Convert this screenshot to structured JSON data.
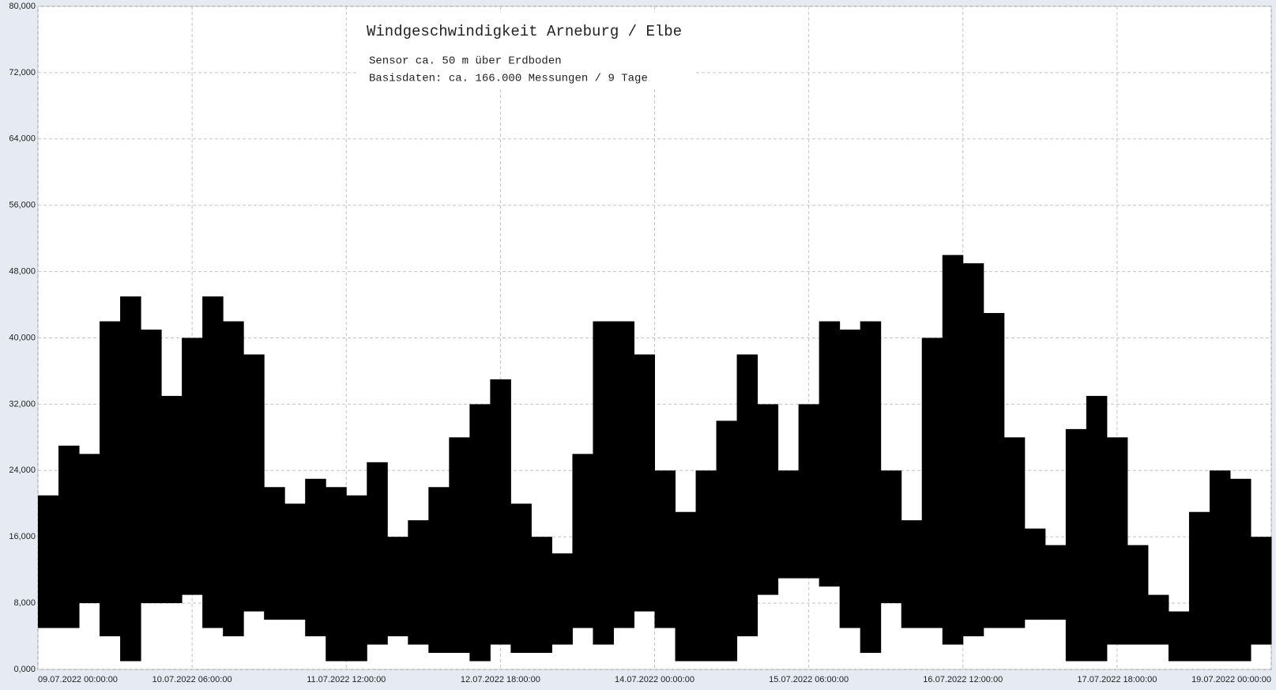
{
  "chart_data": {
    "type": "range",
    "title": "Windgeschwindigkeit  Arneburg / Elbe",
    "annotations": [
      "Sensor ca. 50 m über Erdboden",
      "Basisdaten:  ca. 166.000 Messungen / 9 Tage"
    ],
    "color": "#000000",
    "x": [
      "2022-07-09T00:00",
      "2022-07-09T04:00",
      "2022-07-09T08:00",
      "2022-07-09T12:00",
      "2022-07-09T16:00",
      "2022-07-09T20:00",
      "2022-07-10T00:00",
      "2022-07-10T04:00",
      "2022-07-10T08:00",
      "2022-07-10T12:00",
      "2022-07-10T16:00",
      "2022-07-10T20:00",
      "2022-07-11T00:00",
      "2022-07-11T04:00",
      "2022-07-11T08:00",
      "2022-07-11T12:00",
      "2022-07-11T16:00",
      "2022-07-11T20:00",
      "2022-07-12T00:00",
      "2022-07-12T04:00",
      "2022-07-12T08:00",
      "2022-07-12T12:00",
      "2022-07-12T16:00",
      "2022-07-12T20:00",
      "2022-07-13T00:00",
      "2022-07-13T04:00",
      "2022-07-13T08:00",
      "2022-07-13T12:00",
      "2022-07-13T16:00",
      "2022-07-13T20:00",
      "2022-07-14T00:00",
      "2022-07-14T04:00",
      "2022-07-14T08:00",
      "2022-07-14T12:00",
      "2022-07-14T16:00",
      "2022-07-14T20:00",
      "2022-07-15T00:00",
      "2022-07-15T04:00",
      "2022-07-15T08:00",
      "2022-07-15T12:00",
      "2022-07-15T16:00",
      "2022-07-15T20:00",
      "2022-07-16T00:00",
      "2022-07-16T04:00",
      "2022-07-16T08:00",
      "2022-07-16T12:00",
      "2022-07-16T16:00",
      "2022-07-16T20:00",
      "2022-07-17T00:00",
      "2022-07-17T04:00",
      "2022-07-17T08:00",
      "2022-07-17T12:00",
      "2022-07-17T16:00",
      "2022-07-17T20:00",
      "2022-07-18T00:00",
      "2022-07-18T04:00",
      "2022-07-18T08:00",
      "2022-07-18T12:00",
      "2022-07-18T16:00",
      "2022-07-18T20:00"
    ],
    "lows": [
      5,
      5,
      8,
      4,
      1,
      8,
      8,
      9,
      5,
      4,
      7,
      6,
      6,
      4,
      1,
      1,
      3,
      4,
      3,
      2,
      2,
      1,
      3,
      2,
      2,
      3,
      5,
      3,
      5,
      7,
      5,
      1,
      1,
      1,
      4,
      9,
      11,
      11,
      10,
      5,
      2,
      8,
      5,
      5,
      3,
      4,
      5,
      5,
      6,
      6,
      1,
      1,
      3,
      3,
      3,
      1,
      1,
      1,
      1,
      3
    ],
    "highs": [
      21,
      27,
      26,
      42,
      45,
      41,
      33,
      40,
      45,
      42,
      38,
      22,
      20,
      23,
      22,
      21,
      25,
      16,
      18,
      22,
      28,
      32,
      35,
      20,
      16,
      14,
      26,
      42,
      42,
      38,
      24,
      19,
      24,
      30,
      38,
      32,
      24,
      32,
      42,
      41,
      42,
      24,
      18,
      40,
      50,
      49,
      43,
      28,
      17,
      15,
      29,
      33,
      28,
      15,
      9,
      7,
      19,
      24,
      23,
      16
    ],
    "xlim": [
      "2022-07-09T00:00",
      "2022-07-19T00:00"
    ],
    "xticks": [
      {
        "value": "2022-07-09T00:00",
        "label": "09.07.2022  00:00:00"
      },
      {
        "value": "2022-07-10T06:00",
        "label": "10.07.2022  06:00:00"
      },
      {
        "value": "2022-07-11T12:00",
        "label": "11.07.2022  12:00:00"
      },
      {
        "value": "2022-07-12T18:00",
        "label": "12.07.2022  18:00:00"
      },
      {
        "value": "2022-07-14T00:00",
        "label": "14.07.2022  00:00:00"
      },
      {
        "value": "2022-07-15T06:00",
        "label": "15.07.2022  06:00:00"
      },
      {
        "value": "2022-07-16T12:00",
        "label": "16.07.2022  12:00:00"
      },
      {
        "value": "2022-07-17T18:00",
        "label": "17.07.2022  18:00:00"
      },
      {
        "value": "2022-07-19T00:00",
        "label": "19.07.2022  00:00:00"
      }
    ],
    "ylim": [
      0,
      80
    ],
    "yticks": [
      {
        "value": 0,
        "label": "0,000"
      },
      {
        "value": 8,
        "label": "8,000"
      },
      {
        "value": 16,
        "label": "16,000"
      },
      {
        "value": 24,
        "label": "24,000"
      },
      {
        "value": 32,
        "label": "32,000"
      },
      {
        "value": 40,
        "label": "40,000"
      },
      {
        "value": 48,
        "label": "48,000"
      },
      {
        "value": 56,
        "label": "56,000"
      },
      {
        "value": 64,
        "label": "64,000"
      },
      {
        "value": 72,
        "label": "72,000"
      },
      {
        "value": 80,
        "label": "80,000"
      }
    ],
    "grid": true
  }
}
